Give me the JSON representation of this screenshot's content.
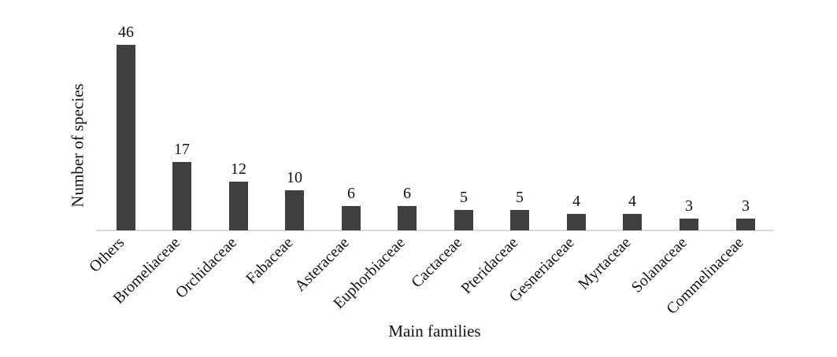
{
  "chart_data": {
    "type": "bar",
    "categories": [
      "Others",
      "Bromeliaceae",
      "Orchidaceae",
      "Fabaceae",
      "Asteraceae",
      "Euphorbiaceae",
      "Cactaceae",
      "Pteridaceae",
      "Gesneriaceae",
      "Myrtaceae",
      "Solanaceae",
      "Commelinaceae"
    ],
    "values": [
      46,
      17,
      12,
      10,
      6,
      6,
      5,
      5,
      4,
      4,
      3,
      3
    ],
    "title": "",
    "xlabel": "Main families",
    "ylabel": "Number of species",
    "ylim": [
      0,
      46
    ],
    "grid": false,
    "legend": false,
    "data_labels_shown": true,
    "bar_color": "#3f3f3f",
    "axis_line_color": "#d9d9d9",
    "text_color": "#111111",
    "background_color": "#ffffff"
  }
}
